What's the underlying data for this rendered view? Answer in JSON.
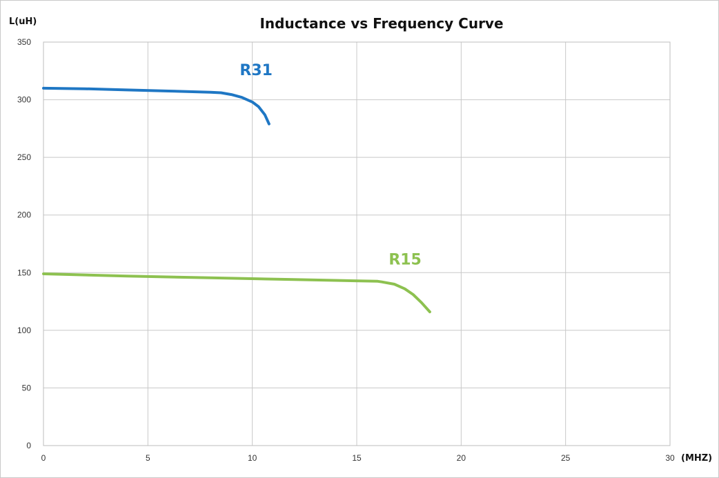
{
  "chart_data": {
    "type": "line",
    "title": "Inductance vs Frequency Curve",
    "ylabel": "L(uH)",
    "xlabel": "(MHZ)",
    "xlim": [
      0,
      30
    ],
    "ylim": [
      0,
      350
    ],
    "xticks": [
      0,
      5,
      10,
      15,
      20,
      25,
      30
    ],
    "yticks": [
      0,
      50,
      100,
      150,
      200,
      250,
      300,
      350
    ],
    "grid": true,
    "series": [
      {
        "name": "R31",
        "color": "#1f77c4",
        "points": [
          [
            0,
            310
          ],
          [
            2,
            309.5
          ],
          [
            4,
            308.5
          ],
          [
            6,
            307.5
          ],
          [
            8,
            306.5
          ],
          [
            8.5,
            306
          ],
          [
            9,
            304.5
          ],
          [
            9.5,
            302
          ],
          [
            10,
            298
          ],
          [
            10.3,
            294
          ],
          [
            10.6,
            287
          ],
          [
            10.8,
            279
          ]
        ]
      },
      {
        "name": "R15",
        "color": "#8dc150",
        "points": [
          [
            0,
            149
          ],
          [
            4,
            147
          ],
          [
            8,
            145.5
          ],
          [
            12,
            144
          ],
          [
            16,
            142.5
          ],
          [
            16.2,
            142
          ],
          [
            16.8,
            140
          ],
          [
            17.3,
            136
          ],
          [
            17.7,
            131
          ],
          [
            18.1,
            124
          ],
          [
            18.5,
            116
          ]
        ]
      }
    ]
  }
}
